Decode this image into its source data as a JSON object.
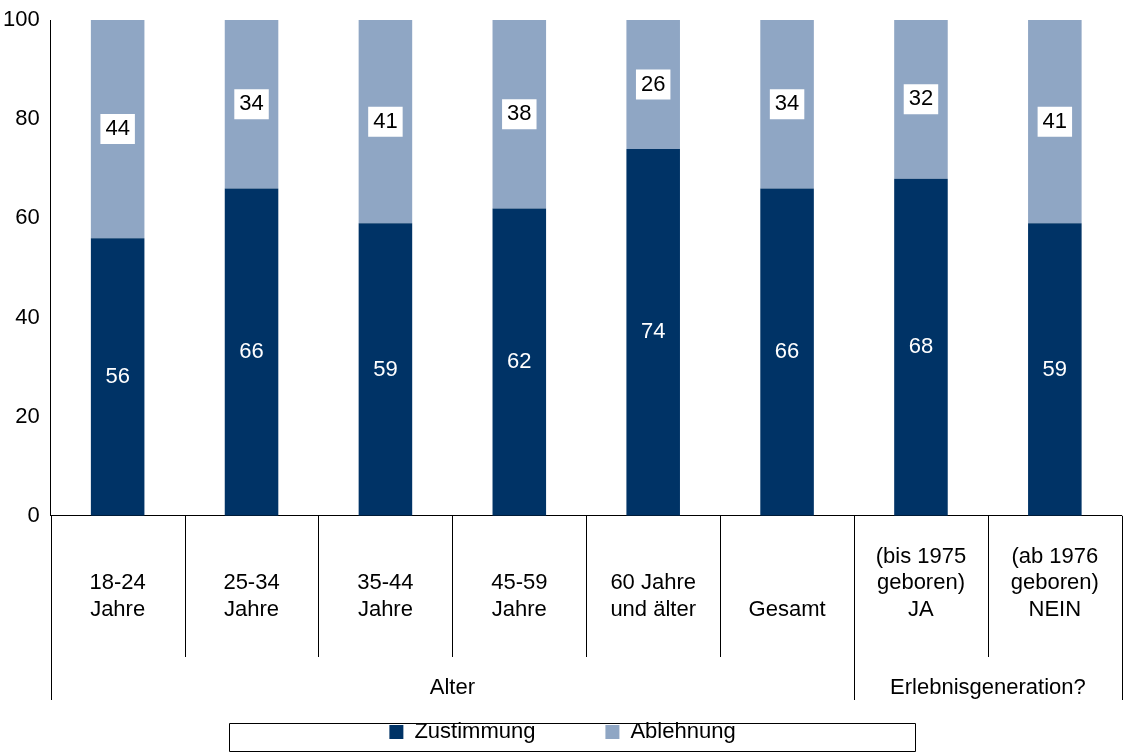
{
  "chart_data": {
    "type": "bar",
    "stacked": true,
    "categories": [
      "18-24\nJahre",
      "25-34\nJahre",
      "35-44\nJahre",
      "45-59\nJahre",
      "60 Jahre\nund älter",
      "Gesamt",
      "(bis 1975\ngeboren)\nJA",
      "(ab 1976\ngeboren)\nNEIN"
    ],
    "series": [
      {
        "name": "Zustimmung",
        "color": "#003366",
        "values": [
          56,
          66,
          59,
          62,
          74,
          66,
          68,
          59
        ]
      },
      {
        "name": "Ablehnung",
        "color": "#8fa6c4",
        "values": [
          44,
          34,
          41,
          38,
          26,
          34,
          32,
          41
        ]
      }
    ],
    "ylim": [
      0,
      100
    ],
    "yticks": [
      0,
      20,
      40,
      60,
      80,
      100
    ],
    "grid": false,
    "legend": "bottom",
    "data_labels": true,
    "annotations": [
      "Alter",
      "Erlebnisgeneration?"
    ]
  }
}
